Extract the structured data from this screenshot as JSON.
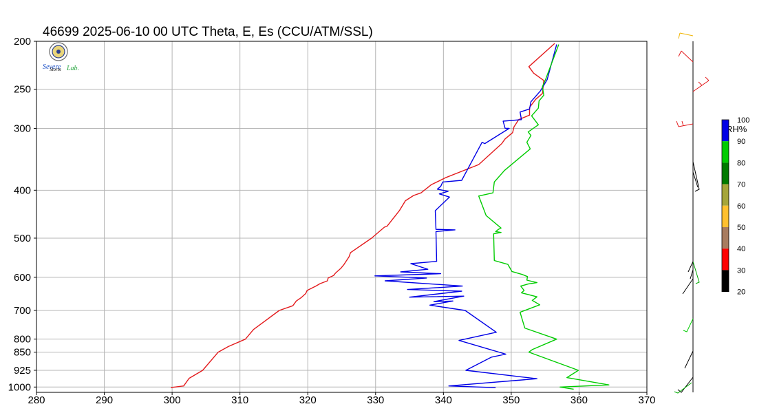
{
  "title": "46699  2025-06-10 00 UTC  Theta, E, Es (CCU/ATM/SSL)",
  "logo": {
    "line1": "Severe",
    "line2": "Storm",
    "line3": "Lab."
  },
  "colors": {
    "theta": "#e31a1c",
    "e": "#0000e6",
    "es": "#00cc00",
    "grid": "#b4b4b4",
    "frame": "#000000"
  },
  "chart_data": {
    "type": "line",
    "title": "46699  2025-06-10 00 UTC  Theta, E, Es (CCU/ATM/SSL)",
    "xlabel": "",
    "ylabel": "",
    "xlim": [
      280,
      370
    ],
    "ylim_pressure": [
      1025,
      200
    ],
    "y_scale": "log-pressure",
    "grid": true,
    "x_ticks": [
      "280",
      "290",
      "300",
      "310",
      "320",
      "330",
      "340",
      "350",
      "360",
      "370"
    ],
    "y_ticks": [
      200,
      250,
      300,
      400,
      500,
      600,
      700,
      800,
      850,
      925,
      1000
    ],
    "y_tick_labels": [
      "200",
      "250",
      "300",
      "400",
      "500",
      "600",
      "700",
      "800",
      "850",
      "925",
      "1000"
    ],
    "series": [
      {
        "key": "theta",
        "color": "#e31a1c",
        "points": [
          [
            299.9,
            1005
          ],
          [
            299.9,
            1002
          ],
          [
            301.7,
            995
          ],
          [
            302.5,
            960
          ],
          [
            304.5,
            925
          ],
          [
            306.8,
            850
          ],
          [
            308.3,
            828
          ],
          [
            310.8,
            800
          ],
          [
            312.0,
            765
          ],
          [
            315.8,
            700
          ],
          [
            317.8,
            685
          ],
          [
            318.3,
            670
          ],
          [
            319.0,
            660
          ],
          [
            319.7,
            647
          ],
          [
            319.9,
            638
          ],
          [
            321.2,
            625
          ],
          [
            321.8,
            618
          ],
          [
            322.9,
            610
          ],
          [
            323.0,
            602
          ],
          [
            323.8,
            595
          ],
          [
            324.1,
            588
          ],
          [
            324.9,
            575
          ],
          [
            325.3,
            566
          ],
          [
            326.1,
            545
          ],
          [
            326.3,
            535
          ],
          [
            329.4,
            500
          ],
          [
            331.3,
            475
          ],
          [
            331.7,
            473
          ],
          [
            333.5,
            440
          ],
          [
            334.4,
            420
          ],
          [
            335.6,
            410
          ],
          [
            336.7,
            405
          ],
          [
            338.2,
            390
          ],
          [
            340.4,
            377
          ],
          [
            345.2,
            355
          ],
          [
            348.6,
            322
          ],
          [
            349.1,
            315
          ],
          [
            350.2,
            306
          ],
          [
            350.4,
            298
          ],
          [
            351.1,
            288
          ],
          [
            352.7,
            282
          ],
          [
            352.7,
            272
          ],
          [
            353.6,
            262
          ],
          [
            354.6,
            255
          ],
          [
            354.8,
            240
          ],
          [
            353.3,
            232
          ],
          [
            352.6,
            225
          ],
          [
            356.4,
            202
          ]
        ]
      },
      {
        "key": "e",
        "color": "#0000e6",
        "points": [
          [
            347.7,
            1003
          ],
          [
            340.8,
            995
          ],
          [
            353.8,
            962
          ],
          [
            343.3,
            925
          ],
          [
            347.1,
            870
          ],
          [
            349.2,
            858
          ],
          [
            342.3,
            805
          ],
          [
            347.8,
            775
          ],
          [
            343.2,
            700
          ],
          [
            338.0,
            683
          ],
          [
            341.4,
            670
          ],
          [
            338.6,
            672
          ],
          [
            343.0,
            655
          ],
          [
            335.0,
            658
          ],
          [
            342.7,
            640
          ],
          [
            334.7,
            635
          ],
          [
            342.8,
            625
          ],
          [
            331.4,
            610
          ],
          [
            337.5,
            602
          ],
          [
            329.9,
            596
          ],
          [
            339.6,
            590
          ],
          [
            333.7,
            585
          ],
          [
            337.7,
            578
          ],
          [
            335.2,
            563
          ],
          [
            339.0,
            557
          ],
          [
            338.9,
            485
          ],
          [
            341.7,
            481
          ],
          [
            338.9,
            480
          ],
          [
            338.8,
            440
          ],
          [
            340.9,
            413
          ],
          [
            339.4,
            407
          ],
          [
            340.7,
            402
          ],
          [
            339.1,
            398
          ],
          [
            339.6,
            393
          ],
          [
            339.9,
            385
          ],
          [
            342.7,
            382
          ],
          [
            345.7,
            320
          ],
          [
            346.1,
            322
          ],
          [
            349.7,
            300
          ],
          [
            349.1,
            300
          ],
          [
            348.8,
            290
          ],
          [
            351.5,
            288
          ],
          [
            351.3,
            278
          ],
          [
            352.7,
            274
          ],
          [
            352.9,
            265
          ],
          [
            354.3,
            252
          ],
          [
            355.3,
            239
          ],
          [
            356.7,
            203
          ]
        ]
      },
      {
        "key": "es",
        "color": "#00cc00",
        "points": [
          [
            359.2,
            1010
          ],
          [
            357.2,
            1000
          ],
          [
            364.4,
            990
          ],
          [
            358.2,
            957
          ],
          [
            359.9,
            925
          ],
          [
            352.6,
            850
          ],
          [
            353.1,
            840
          ],
          [
            356.7,
            800
          ],
          [
            352.0,
            760
          ],
          [
            351.3,
            706
          ],
          [
            354.2,
            682
          ],
          [
            353.1,
            668
          ],
          [
            353.8,
            657
          ],
          [
            351.5,
            645
          ],
          [
            351.9,
            638
          ],
          [
            351.4,
            625
          ],
          [
            352.5,
            619
          ],
          [
            353.8,
            615
          ],
          [
            352.3,
            608
          ],
          [
            352.4,
            598
          ],
          [
            351.6,
            592
          ],
          [
            350.1,
            584
          ],
          [
            349.5,
            565
          ],
          [
            347.5,
            555
          ],
          [
            347.4,
            490
          ],
          [
            348.5,
            487
          ],
          [
            347.7,
            485
          ],
          [
            348.1,
            480
          ],
          [
            348.5,
            477
          ],
          [
            346.3,
            450
          ],
          [
            345.2,
            411
          ],
          [
            347.3,
            405
          ],
          [
            347.5,
            385
          ],
          [
            349.0,
            365
          ],
          [
            352.8,
            330
          ],
          [
            352.3,
            320
          ],
          [
            352.9,
            310
          ],
          [
            352.5,
            305
          ],
          [
            354.0,
            295
          ],
          [
            353.0,
            283
          ],
          [
            354.0,
            273
          ],
          [
            354.1,
            264
          ],
          [
            354.8,
            257
          ],
          [
            354.6,
            247
          ],
          [
            355.1,
            238
          ],
          [
            357.0,
            203
          ]
        ]
      }
    ]
  },
  "colorbar": {
    "title": "RH%",
    "labels": [
      "100",
      "90",
      "80",
      "70",
      "60",
      "50",
      "40",
      "30",
      "20"
    ],
    "colors": [
      "#0000e6",
      "#00cc00",
      "#007a00",
      "#a5a53a",
      "#ffc02f",
      "#a87c5f",
      "#ff0000",
      "#000000"
    ]
  }
}
